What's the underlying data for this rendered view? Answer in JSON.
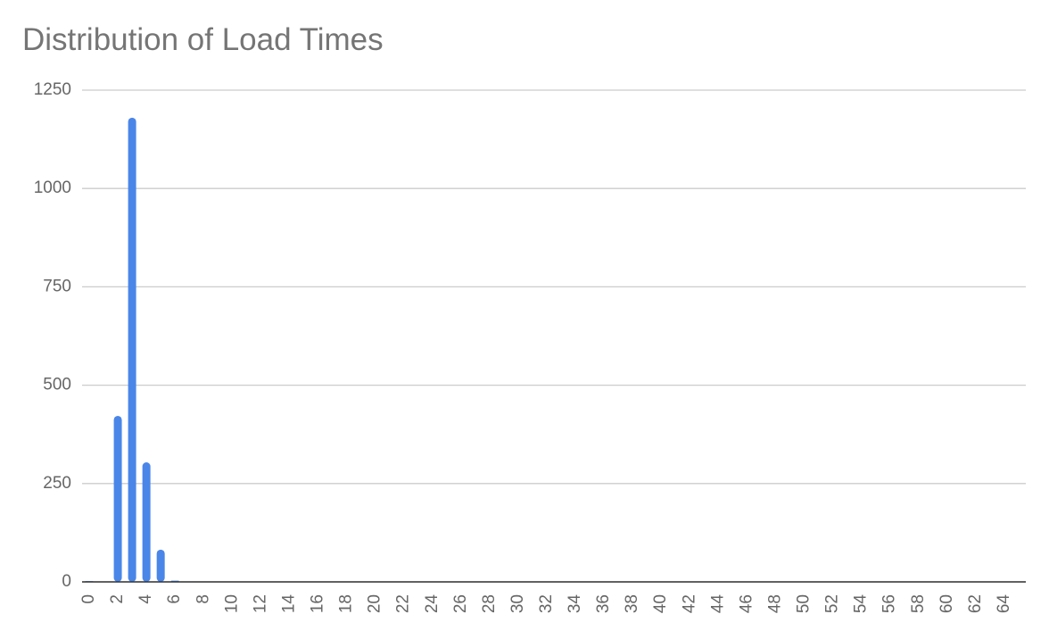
{
  "chart_data": {
    "type": "bar",
    "title": "Distribution of Load Times",
    "categories": [
      "0",
      null,
      "2",
      null,
      "4",
      null,
      "6",
      null,
      "8",
      null,
      "10",
      null,
      "12",
      null,
      "14",
      null,
      "16",
      null,
      "18",
      null,
      "20",
      null,
      "22",
      null,
      "24",
      null,
      "26",
      null,
      "28",
      null,
      "30",
      null,
      "32",
      null,
      "34",
      null,
      "36",
      null,
      "38",
      null,
      "40",
      null,
      "42",
      null,
      "44",
      null,
      "46",
      null,
      "48",
      null,
      "50",
      null,
      "52",
      null,
      "54",
      null,
      "56",
      null,
      "58",
      null,
      "60",
      null,
      "62",
      null,
      "64",
      null
    ],
    "values": [
      2,
      0,
      422,
      1180,
      304,
      82,
      3,
      0,
      0,
      0,
      0,
      0,
      0,
      0,
      0,
      0,
      0,
      0,
      0,
      0,
      0,
      0,
      0,
      0,
      0,
      0,
      0,
      0,
      0,
      0,
      0,
      0,
      0,
      0,
      0,
      0,
      0,
      0,
      0,
      0,
      0,
      0,
      0,
      0,
      0,
      0,
      0,
      0,
      0,
      0,
      0,
      0,
      0,
      0,
      0,
      0,
      0,
      0,
      0,
      0,
      0,
      0,
      0,
      0,
      0,
      0
    ],
    "color": "#4a86e8",
    "ylim": [
      0,
      1250
    ],
    "yticks": [
      0,
      250,
      500,
      750,
      1000,
      1250
    ],
    "grid": true
  }
}
